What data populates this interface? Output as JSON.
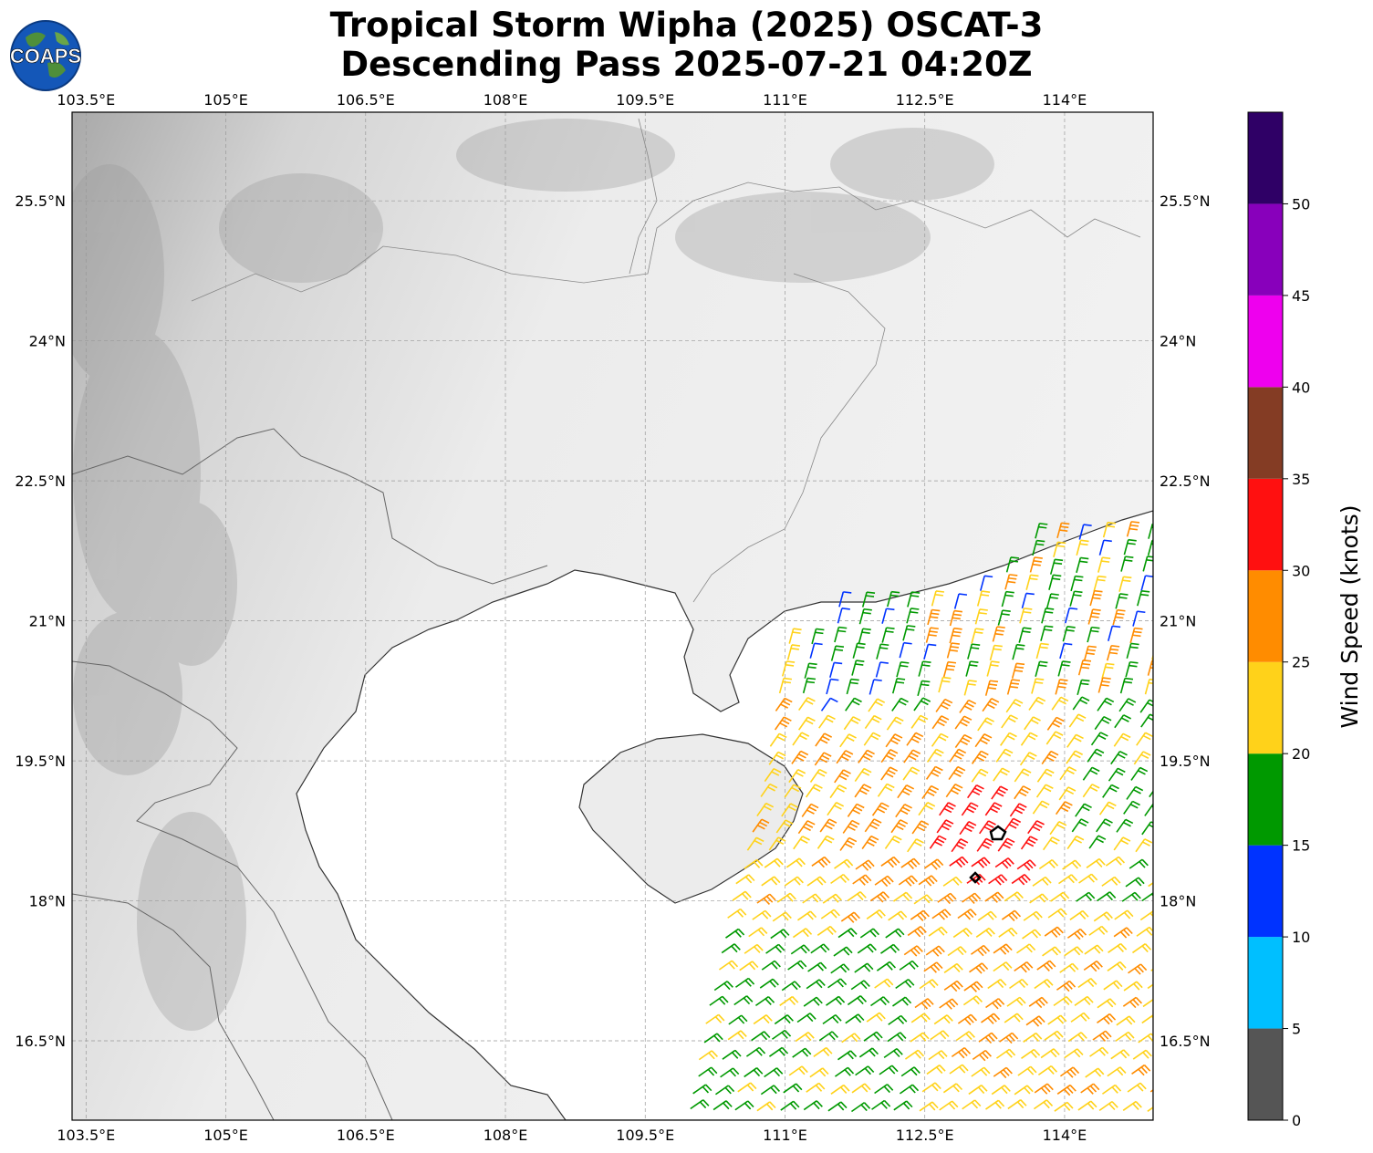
{
  "title": {
    "line1": "Tropical Storm Wipha (2025) OSCAT-3",
    "line2": "Descending Pass 2025-07-21 04:20Z"
  },
  "logo": {
    "text": "COAPS",
    "icon": "globe-icon"
  },
  "map": {
    "lon_range": [
      103.35,
      114.95
    ],
    "lat_range": [
      15.65,
      26.45
    ],
    "lon_ticks": [
      "103.5°E",
      "105°E",
      "106.5°E",
      "108°E",
      "109.5°E",
      "111°E",
      "112.5°E",
      "114°E"
    ],
    "lat_ticks": [
      "16.5°N",
      "18°N",
      "19.5°N",
      "21°N",
      "22.5°N",
      "24°N",
      "25.5°N"
    ],
    "gridlines": true,
    "background": "grayscale terrain",
    "barbs": "wind barbs over the Gulf of Tonkin / South China Sea, colored by speed"
  },
  "colorbar": {
    "label": "Wind Speed (knots)",
    "ticks": [
      "0",
      "5",
      "10",
      "15",
      "20",
      "25",
      "30",
      "35",
      "40",
      "45",
      "50"
    ],
    "colors": [
      "#555555",
      "#00bfff",
      "#0033ff",
      "#009900",
      "#ffd21a",
      "#ff8c00",
      "#ff1010",
      "#843c24",
      "#ee00ee",
      "#8800bb",
      "#2f0066"
    ]
  }
}
